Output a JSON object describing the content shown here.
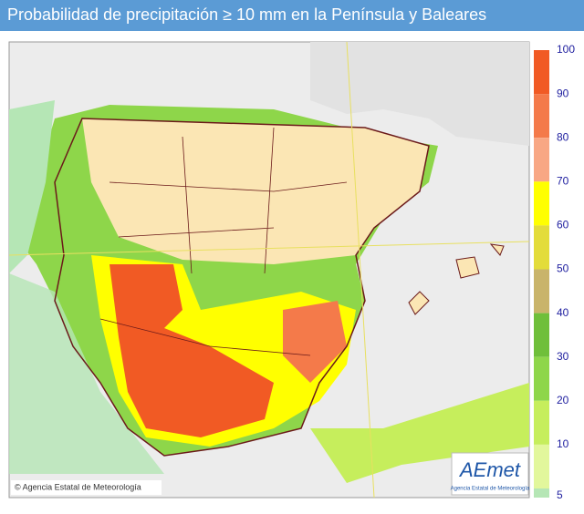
{
  "title": "Probabilidad de precipitación ≥ 10 mm en la Península y Baleares",
  "legend": {
    "labels": [
      100,
      90,
      80,
      70,
      60,
      50,
      40,
      30,
      20,
      10,
      5
    ],
    "colors": [
      "#f15a24",
      "#f47a4a",
      "#f8a784",
      "#ffff00",
      "#e3dc3a",
      "#c9b46a",
      "#6fbf3a",
      "#8ed64a",
      "#c6ee5c",
      "#e2f79c",
      "#b5e6b5"
    ]
  },
  "credit": "© Agencia Estatal de Meteorología",
  "logo": {
    "name": "AEmet",
    "subtitle": "Agencia Estatal de Meteorología"
  }
}
